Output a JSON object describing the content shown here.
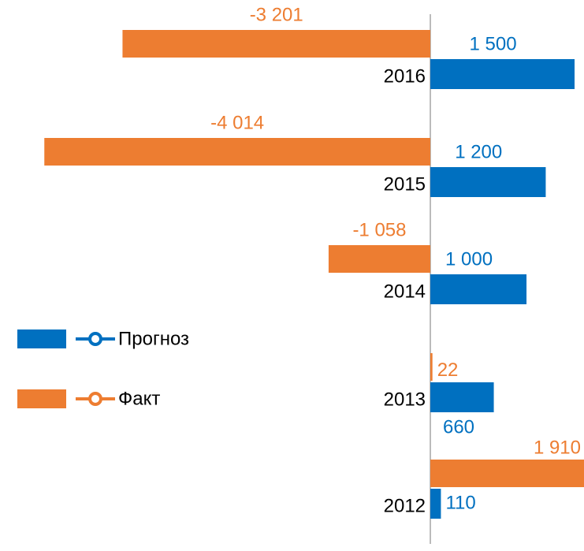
{
  "chart_data": {
    "type": "bar",
    "orientation": "horizontal",
    "categories": [
      "2016",
      "2015",
      "2014",
      "2013",
      "2012"
    ],
    "series": [
      {
        "name": "Прогноз",
        "color": "#0070c0",
        "values": [
          1500,
          1200,
          1000,
          660,
          110
        ],
        "value_labels": [
          "1 500",
          "1 200",
          "1 000",
          "660",
          "110"
        ]
      },
      {
        "name": "Факт",
        "color": "#ed7d31",
        "values": [
          -3201,
          -4014,
          -1058,
          22,
          1910
        ],
        "value_labels": [
          "-3 201",
          "-4 014",
          "-1 058",
          "22",
          "1 910"
        ]
      }
    ],
    "xlim": [
      -4475,
      1598
    ]
  }
}
